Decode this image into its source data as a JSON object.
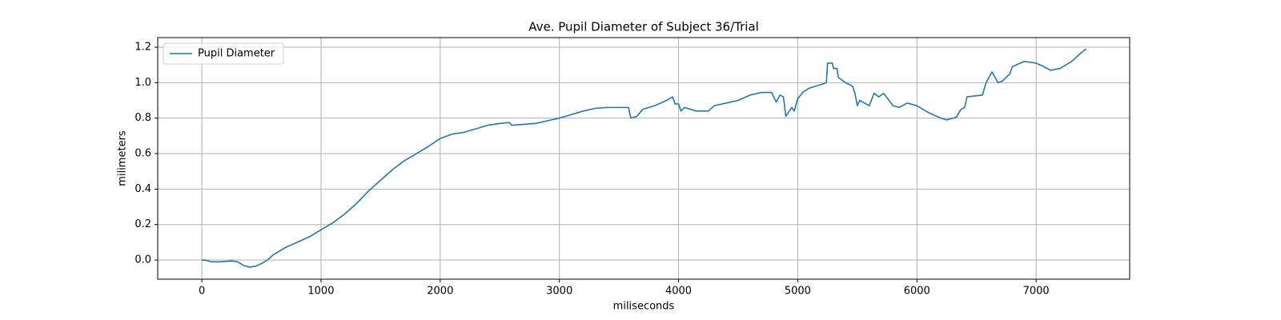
{
  "chart_data": {
    "type": "line",
    "title": "Ave. Pupil Diameter of Subject 36/Trial",
    "xlabel": "miliseconds",
    "ylabel": "milimeters",
    "x": [
      0,
      30,
      80,
      150,
      250,
      300,
      350,
      400,
      450,
      500,
      550,
      600,
      700,
      800,
      900,
      1000,
      1100,
      1200,
      1300,
      1400,
      1500,
      1600,
      1700,
      1800,
      1900,
      2000,
      2100,
      2200,
      2300,
      2400,
      2500,
      2580,
      2600,
      2700,
      2800,
      2900,
      3000,
      3100,
      3200,
      3300,
      3400,
      3500,
      3580,
      3600,
      3650,
      3700,
      3800,
      3900,
      3950,
      3970,
      4000,
      4020,
      4050,
      4150,
      4250,
      4300,
      4400,
      4500,
      4600,
      4700,
      4780,
      4820,
      4850,
      4880,
      4900,
      4950,
      4970,
      5000,
      5050,
      5100,
      5200,
      5240,
      5250,
      5290,
      5300,
      5330,
      5340,
      5400,
      5460,
      5480,
      5500,
      5520,
      5600,
      5640,
      5680,
      5720,
      5800,
      5850,
      5920,
      6000,
      6100,
      6200,
      6250,
      6330,
      6370,
      6400,
      6420,
      6550,
      6580,
      6630,
      6680,
      6720,
      6780,
      6800,
      6900,
      7000,
      7050,
      7120,
      7200,
      7300,
      7380,
      7420
    ],
    "series": [
      {
        "name": "Pupil Diameter",
        "color": "#1f77b4",
        "values": [
          0.0,
          0.0,
          -0.01,
          -0.01,
          -0.005,
          -0.01,
          -0.03,
          -0.04,
          -0.035,
          -0.02,
          0.0,
          0.03,
          0.07,
          0.1,
          0.13,
          0.17,
          0.21,
          0.26,
          0.32,
          0.39,
          0.45,
          0.51,
          0.56,
          0.6,
          0.64,
          0.685,
          0.71,
          0.72,
          0.74,
          0.76,
          0.77,
          0.775,
          0.76,
          0.765,
          0.77,
          0.785,
          0.8,
          0.82,
          0.84,
          0.855,
          0.86,
          0.86,
          0.86,
          0.8,
          0.81,
          0.85,
          0.87,
          0.9,
          0.92,
          0.88,
          0.88,
          0.84,
          0.86,
          0.84,
          0.84,
          0.87,
          0.885,
          0.9,
          0.93,
          0.945,
          0.945,
          0.89,
          0.93,
          0.92,
          0.81,
          0.86,
          0.84,
          0.91,
          0.95,
          0.97,
          0.99,
          1.0,
          1.11,
          1.11,
          1.08,
          1.08,
          1.03,
          1.0,
          0.98,
          0.94,
          0.87,
          0.9,
          0.87,
          0.94,
          0.92,
          0.94,
          0.87,
          0.86,
          0.885,
          0.87,
          0.83,
          0.8,
          0.79,
          0.805,
          0.85,
          0.86,
          0.92,
          0.93,
          1.0,
          1.06,
          1.0,
          1.01,
          1.05,
          1.09,
          1.12,
          1.11,
          1.095,
          1.07,
          1.08,
          1.12,
          1.17,
          1.19
        ]
      }
    ],
    "xlim": [
      -370,
      7785
    ],
    "ylim": [
      -0.108,
      1.254
    ],
    "xticks": [
      0,
      1000,
      2000,
      3000,
      4000,
      5000,
      6000,
      7000
    ],
    "yticks": [
      {
        "value": 0,
        "label": "0.0"
      },
      0.2,
      0.4,
      0.6,
      0.8,
      {
        "value": 1,
        "label": "1.0"
      },
      1.2
    ],
    "grid": true,
    "legend": "upper left"
  }
}
